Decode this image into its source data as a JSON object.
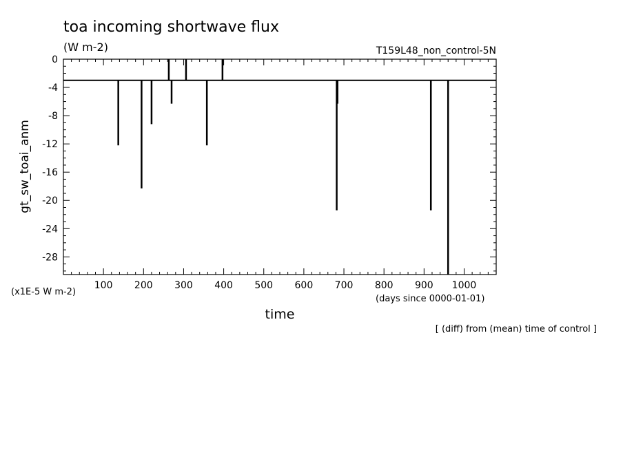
{
  "chart_data": {
    "type": "bar",
    "title": "toa incoming shortwave flux",
    "units": "(W m-2)",
    "experiment": "T159L48_non_control-5N",
    "ylabel": "gt_sw_toai_anm",
    "xlabel": "time",
    "x_units": "(days since 0000-01-01)",
    "y_scale_note": "(x1E-5 W m-2)",
    "footnote": "[ (diff) from (mean) time of control ]",
    "xlim": [
      0,
      1080
    ],
    "ylim": [
      -30.5,
      0
    ],
    "baseline": -3,
    "xticks": [
      100,
      200,
      300,
      400,
      500,
      600,
      700,
      800,
      900,
      1000
    ],
    "yticks": [
      0,
      -4,
      -8,
      -12,
      -16,
      -20,
      -24,
      -28
    ],
    "x": [
      137,
      195,
      220,
      263,
      270,
      306,
      358,
      397,
      682,
      684,
      917,
      960
    ],
    "values": [
      -12.2,
      -18.3,
      -9.2,
      0,
      -6.3,
      0,
      -12.2,
      0,
      -21.4,
      -6.3,
      -21.4,
      -30.5
    ]
  }
}
